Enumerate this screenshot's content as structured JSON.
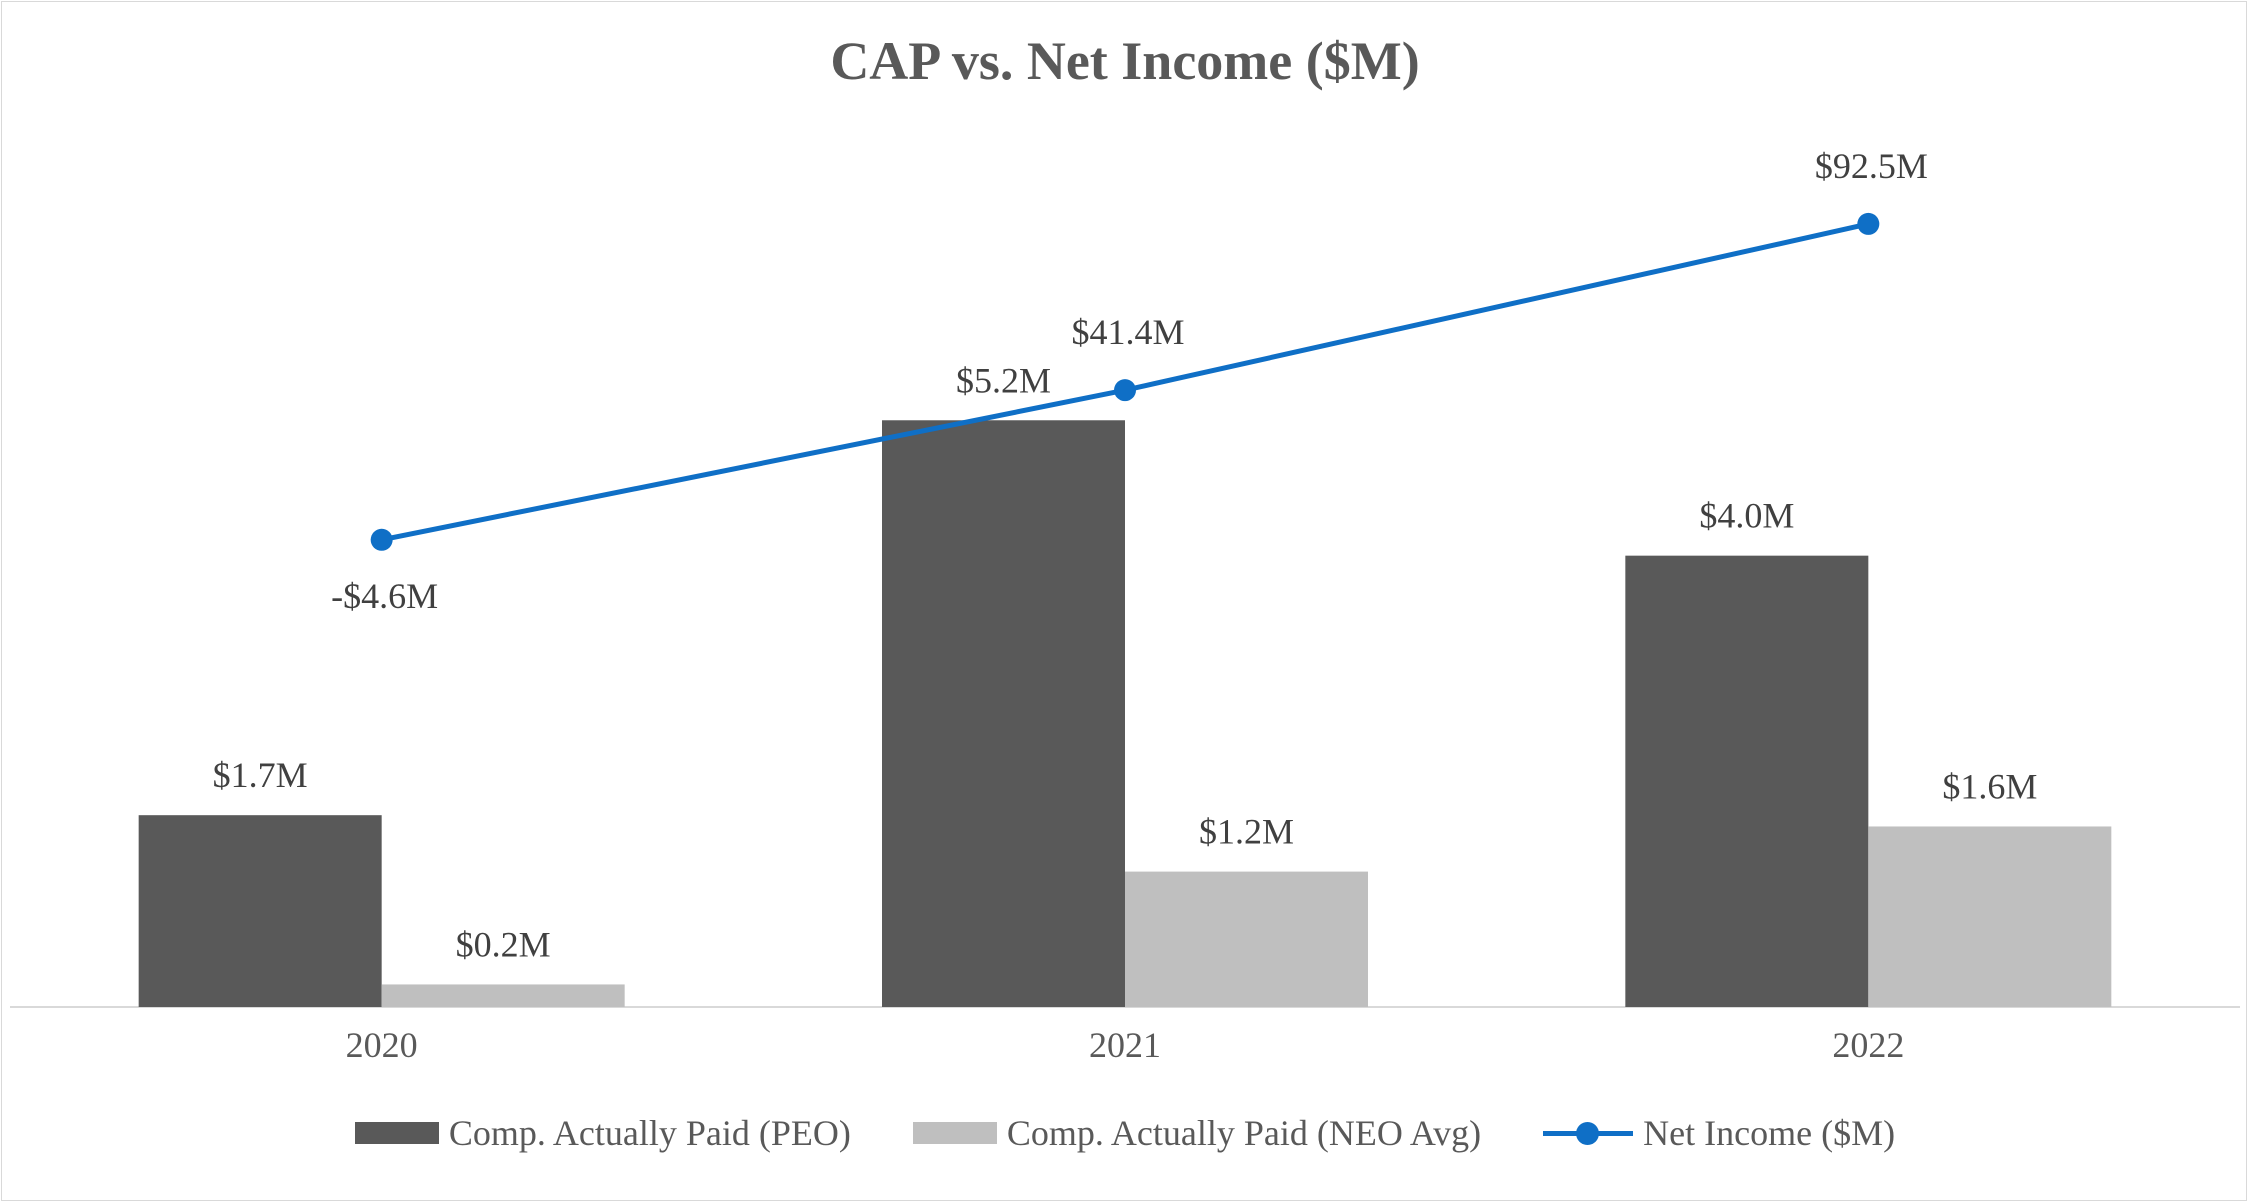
{
  "chart_data": {
    "type": "bar",
    "title": "CAP vs. Net Income ($M)",
    "categories": [
      "2020",
      "2021",
      "2022"
    ],
    "series": [
      {
        "name": "Comp. Actually Paid (PEO)",
        "kind": "bar",
        "color": "#595959",
        "values": [
          1.7,
          5.2,
          4.0
        ],
        "labels": [
          "$1.7M",
          "$5.2M",
          "$4.0M"
        ]
      },
      {
        "name": "Comp. Actually Paid (NEO Avg)",
        "kind": "bar",
        "color": "#bfbfbf",
        "values": [
          0.2,
          1.2,
          1.6
        ],
        "labels": [
          "$0.2M",
          "$1.2M",
          "$1.6M"
        ]
      },
      {
        "name": "Net Income ($M)",
        "kind": "line",
        "axis": "secondary",
        "color": "#0f6fc6",
        "values": [
          -4.6,
          41.4,
          92.5
        ],
        "labels": [
          "-$4.6M",
          "$41.4M",
          "$92.5M"
        ]
      }
    ],
    "ylim": [
      0,
      6
    ],
    "y2lim": [
      -60,
      110
    ],
    "grid": false,
    "legend_position": "bottom",
    "xlabel": "",
    "ylabel": ""
  }
}
